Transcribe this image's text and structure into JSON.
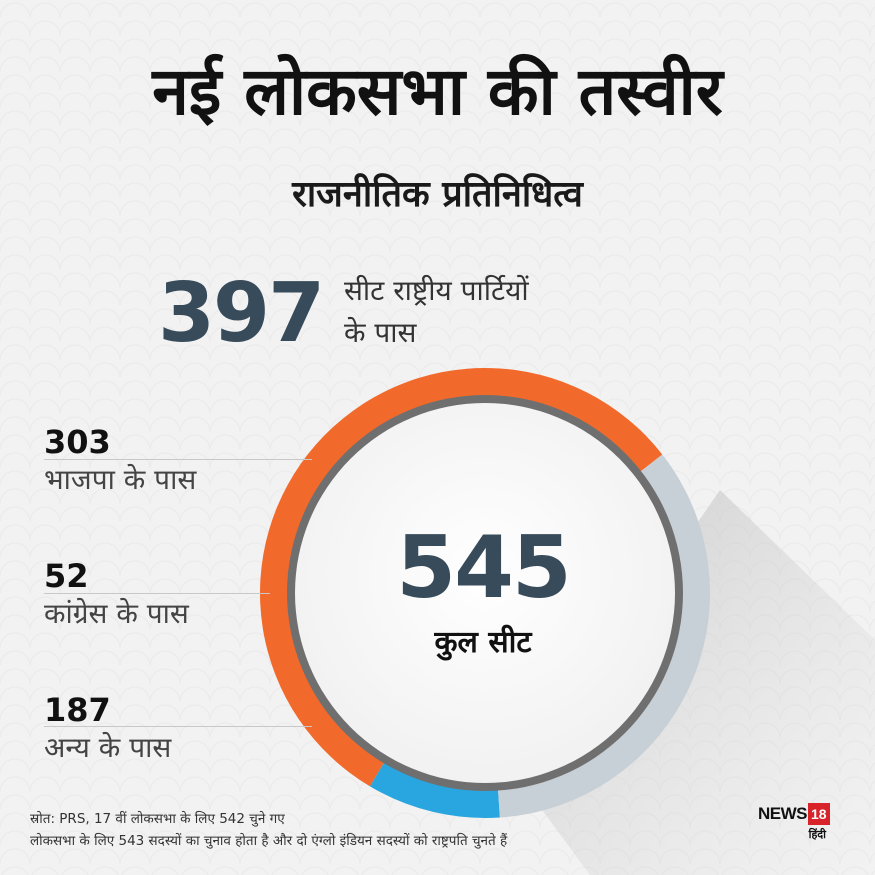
{
  "header": {
    "title": "नई लोकसभा की तस्वीर",
    "subtitle": "राजनीतिक प्रतिनिधित्व"
  },
  "national": {
    "value": "397",
    "label_line1": "सीट राष्ट्रीय पार्टियों",
    "label_line2": "के पास"
  },
  "stats": [
    {
      "value": "303",
      "label": "भाजपा के पास"
    },
    {
      "value": "52",
      "label": "कांग्रेस के पास"
    },
    {
      "value": "187",
      "label": "अन्य के पास"
    }
  ],
  "center": {
    "value": "545",
    "label": "कुल सीट"
  },
  "chart_data": {
    "type": "pie",
    "categories": [
      "भाजपा के पास",
      "कांग्रेस के पास",
      "अन्य के पास"
    ],
    "values": [
      303,
      52,
      187
    ],
    "colors": [
      "#f26a2b",
      "#29a6df",
      "#c7d0d6"
    ],
    "total": 545
  },
  "source": {
    "line1": "स्रोत: PRS, 17 वीं लोकसभा के लिए 542 चुने गए",
    "line2": "लोकसभा के लिए 543 सदस्यों का चुनाव होता है और दो एंग्लो इंडियन सदस्यों को राष्ट्रपति चुनते हैं"
  },
  "logo": {
    "brand": "NEWS",
    "number": "18",
    "sub": "हिंदी",
    "accent": "#d8232a"
  }
}
